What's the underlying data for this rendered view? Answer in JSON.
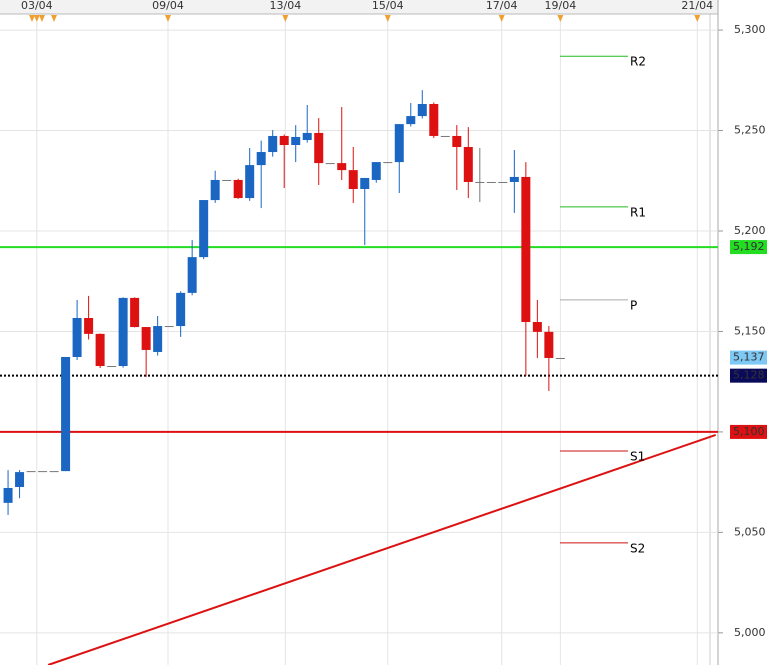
{
  "chart_data": {
    "type": "candlestick",
    "open": [
      5064.7,
      5072.6,
      5080.5,
      5080.5,
      5080.5,
      5080.5,
      5137.3,
      5156.7,
      5148.8,
      5132.8,
      5132.8,
      5166.7,
      5152.2,
      5139.8,
      5152.7,
      5152.7,
      5169.2,
      5187,
      5215.4,
      5225.4,
      5225.4,
      5216.4,
      5232.8,
      5239.3,
      5247.3,
      5242.8,
      5245.3,
      5248.8,
      5233.8,
      5233.8,
      5230.3,
      5220.9,
      5225.4,
      5234.3,
      5234.3,
      5253.2,
      5257.2,
      5263.2,
      5247.3,
      5247.3,
      5241.8,
      5224.4,
      5224.4,
      5224.4,
      5224.4,
      5226.9,
      5154.7,
      5149.8,
      5136.8
    ],
    "high": [
      5081,
      5081,
      5080.5,
      5080.5,
      5080.5,
      5137.3,
      5165.7,
      5167.7,
      5149,
      5132.8,
      5167,
      5167,
      5152.2,
      5157.7,
      5152.7,
      5170,
      5195.5,
      5215.4,
      5230,
      5225.4,
      5226,
      5241.3,
      5245,
      5250.2,
      5248,
      5252.7,
      5262.7,
      5256.2,
      5233.8,
      5261.7,
      5241.8,
      5226.4,
      5234.3,
      5234.3,
      5253.2,
      5263.7,
      5270.1,
      5264,
      5247.3,
      5252.7,
      5251.7,
      5241.3,
      5224.4,
      5224.4,
      5240.3,
      5234.3,
      5165.7,
      5152.7,
      5136.8
    ],
    "low": [
      5058.7,
      5067,
      5080.5,
      5080.5,
      5080.5,
      5080.5,
      5135.8,
      5146,
      5131.8,
      5132.8,
      5132,
      5152,
      5127.4,
      5138,
      5152.7,
      5147.3,
      5168,
      5186,
      5214,
      5225.4,
      5216,
      5215,
      5211.4,
      5237,
      5221.4,
      5234.3,
      5244,
      5222.9,
      5233.8,
      5225.4,
      5213.9,
      5193,
      5224,
      5234.3,
      5218.9,
      5252,
      5256,
      5246.3,
      5247.3,
      5220.4,
      5216.4,
      5214.4,
      5224.4,
      5224.4,
      5209,
      5127.9,
      5136.8,
      5120.4,
      5136.8
    ],
    "close": [
      5072.1,
      5080,
      5080.5,
      5080.5,
      5080.5,
      5137.3,
      5156.7,
      5148.8,
      5132.8,
      5132.8,
      5166.7,
      5152.2,
      5140.8,
      5152.7,
      5152.7,
      5169.2,
      5187,
      5215.4,
      5225.4,
      5225.4,
      5216.4,
      5232.8,
      5239.3,
      5247.3,
      5242.8,
      5246.8,
      5248.8,
      5233.8,
      5233.8,
      5230.3,
      5220.9,
      5226.4,
      5234.3,
      5234.3,
      5253.2,
      5257.2,
      5263.2,
      5247.3,
      5247.3,
      5241.8,
      5224.4,
      5224.4,
      5224.4,
      5224.4,
      5226.9,
      5154.7,
      5149.8,
      5136.8,
      5136.8
    ],
    "up_color": "#1a66c2",
    "down_color": "#dd1111",
    "flat_color": "#777777",
    "xlim": [
      -0.7,
      61.7
    ],
    "xticks": [
      {
        "value": 2.5,
        "label": "03/04"
      },
      {
        "value": 13.9,
        "label": "09/04"
      },
      {
        "value": 24.1,
        "label": "13/04"
      },
      {
        "value": 33,
        "label": "15/04"
      },
      {
        "value": 42.9,
        "label": "17/04"
      },
      {
        "value": 48,
        "label": "19/04"
      },
      {
        "value": 59.9,
        "label": "21/04"
      }
    ],
    "ylim": [
      4984,
      5308
    ],
    "yticks": [
      {
        "value": 5000,
        "label": "5,000"
      },
      {
        "value": 5050,
        "label": "5,050"
      },
      {
        "value": 5100,
        "label": "5,100"
      },
      {
        "value": 5150,
        "label": "5,150"
      },
      {
        "value": 5200,
        "label": "5,200"
      },
      {
        "value": 5250,
        "label": "5,250"
      },
      {
        "value": 5300,
        "label": "5,300"
      }
    ],
    "grid": true,
    "levels": [
      {
        "value": 5192,
        "label": "5,192",
        "color": "#22dd22",
        "style": "solid",
        "line": true
      },
      {
        "value": 5137,
        "label": "5,137",
        "color": "#7ec8f5",
        "style": "none",
        "line": false
      },
      {
        "value": 5128,
        "label": "5,128",
        "color": "#0a0a5a",
        "style": "dotted",
        "line": true
      },
      {
        "value": 5100,
        "label": "5,100",
        "color": "#dd1111",
        "style": "solid",
        "line": true
      }
    ],
    "pivots": [
      {
        "label": "R2",
        "value": 5287,
        "color": "#22bb22"
      },
      {
        "label": "R1",
        "value": 5212,
        "color": "#22bb22"
      },
      {
        "label": "P",
        "value": 5165.7,
        "color": "#aaaaaa"
      },
      {
        "label": "S1",
        "value": 5090.5,
        "color": "#cc1111"
      },
      {
        "label": "S2",
        "value": 5044.8,
        "color": "#cc1111"
      }
    ],
    "trendline": {
      "x": [
        3.48,
        61.5
      ],
      "y": [
        4984,
        5098.5
      ],
      "color": "#dd1111"
    }
  }
}
